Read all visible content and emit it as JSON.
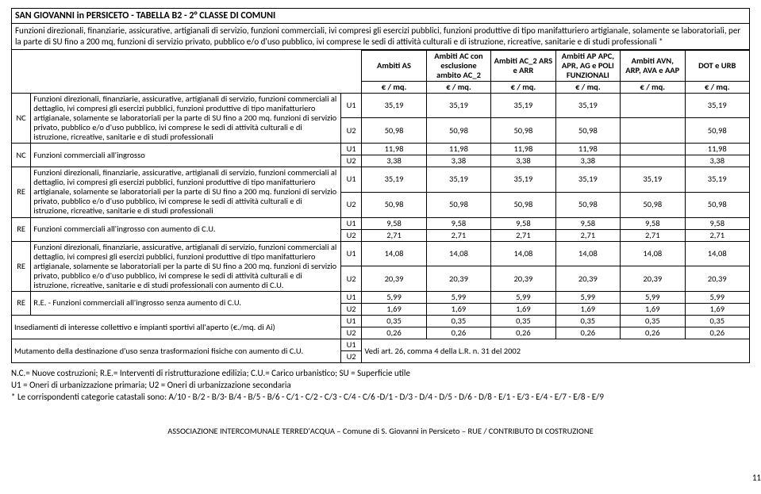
{
  "title": "SAN GIOVANNI in PERSICETO - TABELLA B2 - 2° CLASSE DI COMUNI",
  "intro": "Funzioni direzionali, finanziarie, assicurative, artigianali di servizio, funzioni commerciali, ivi compresi gli esercizi pubblici, funzioni produttive di tipo manifatturiero artigianale, solamente se laboratoriali, per la parte di SU fino a 200 mq, funzioni di servizio privato, pubblico e/o d'uso pubblico, ivi comprese le sedi di attività culturali e di istruzione, ricreative, sanitarie e di studi professionali *",
  "headers": {
    "ambitiAS": "Ambiti AS",
    "ambitiAC": "Ambiti AC con esclusione ambito AC_2",
    "ambitiAC2": "Ambiti AC_2 ARS e ARR",
    "ambitiAP": "Ambiti AP APC, APR, AG e POLI FUNZIONALI",
    "ambitiAVN": "Ambiti AVN, ARP, AVA e AAP",
    "dot": "DOT e URB",
    "unit": "€ / mq."
  },
  "rows": [
    {
      "code": "NC",
      "desc": "Funzioni direzionali, finanziarie, assicurative, artigianali di servizio, funzioni commerciali al dettaglio, ivi compresi gli esercizi pubblici, funzioni produttive di tipo manifatturiero artigianale, solamente se laboratoriali per la parte di SU fino a 200 mq. funzioni di servizio privato, pubblico e/o d'uso pubblico, ivi comprese le sedi di attività culturali e di istruzione, ricreative, sanitarie e di studi professionali",
      "U1": [
        "35,19",
        "35,19",
        "35,19",
        "35,19",
        "",
        "35,19"
      ],
      "U2": [
        "50,98",
        "50,98",
        "50,98",
        "50,98",
        "",
        "50,98"
      ]
    },
    {
      "code": "NC",
      "desc": "Funzioni commerciali all'ingrosso",
      "U1": [
        "11,98",
        "11,98",
        "11,98",
        "11,98",
        "",
        "11,98"
      ],
      "U2": [
        "3,38",
        "3,38",
        "3,38",
        "3,38",
        "",
        "3,38"
      ]
    },
    {
      "code": "RE",
      "desc": "Funzioni direzionali, finanziarie, assicurative, artigianali di servizio, funzioni commerciali al dettaglio, ivi compresi gli esercizi pubblici, funzioni produttive di tipo manifatturiero artigianale, solamente se laboratoriali per la parte di SU fino a 200 mq. funzioni di servizio privato, pubblico e/o d'uso pubblico, ivi comprese le sedi di attività culturali e di istruzione, ricreative, sanitarie e di studi professionali",
      "U1": [
        "35,19",
        "35,19",
        "35,19",
        "35,19",
        "35,19",
        "35,19"
      ],
      "U2": [
        "50,98",
        "50,98",
        "50,98",
        "50,98",
        "50,98",
        "50,98"
      ]
    },
    {
      "code": "RE",
      "desc": "Funzioni commerciali all'ingrosso con aumento di C.U.",
      "U1": [
        "9,58",
        "9,58",
        "9,58",
        "9,58",
        "9,58",
        "9,58"
      ],
      "U2": [
        "2,71",
        "2,71",
        "2,71",
        "2,71",
        "2,71",
        "2,71"
      ]
    },
    {
      "code": "RE",
      "desc": "Funzioni direzionali, finanziarie, assicurative, artigianali di servizio, funzioni commerciali al dettaglio, ivi compresi gli esercizi pubblici, funzioni produttive di tipo manifatturiero artigianale, solamente se laboratoriali per la parte di SU fino a 200 mq. funzioni di servizio privato, pubblico e/o d'uso pubblico, ivi comprese le sedi di attività culturali e di istruzione, ricreative, sanitarie e di studi professionali con aumento di C.U.",
      "U1": [
        "14,08",
        "14,08",
        "14,08",
        "14,08",
        "14,08",
        "14,08"
      ],
      "U2": [
        "20,39",
        "20,39",
        "20,39",
        "20,39",
        "20,39",
        "20,39"
      ]
    },
    {
      "code": "RE",
      "desc": "R.E. - Funzioni commerciali all'ingrosso senza aumento di C.U.",
      "U1": [
        "5,99",
        "5,99",
        "5,99",
        "5,99",
        "5,99",
        "5,99"
      ],
      "U2": [
        "1,69",
        "1,69",
        "1,69",
        "1,69",
        "1,69",
        "1,69"
      ]
    }
  ],
  "insediamenti": {
    "desc": "Insediamenti di interesse collettivo e impianti sportivi all'aperto (€./mq. di Ai)",
    "U1": [
      "0,35",
      "0,35",
      "0,35",
      "0,35",
      "0,35",
      "0,35"
    ],
    "U2": [
      "0,26",
      "0,26",
      "0,26",
      "0,26",
      "0,26",
      "0,26"
    ]
  },
  "mutamento": {
    "desc": "Mutamento della destinazione d'uso senza trasformazioni fisiche con aumento di C.U.",
    "note": "Vedi art. 26, comma 4 della L.R. n. 31 del 2002"
  },
  "notes": {
    "n1": "N.C.= Nuove costruzioni; R.E.= Interventi di ristrutturazione edilizia; C.U.= Carico urbanistico; SU = Superficie utile",
    "n2": "U1 = Oneri di urbanizzazione primaria; U2 = Oneri di urbanizzazione secondaria",
    "n3": "* Le corrispondenti categorie catastali sono: A/10 - B/2 - B/3- B/4 - B/5 - B/6 - C/1 - C/2 - C/3 - C/4 - C/6 -D/1 - D/3 - D/4 - D/5 - D/6 - D/8 - E/1 - E/3 - E/4 - E/7 - E/8 - E/9"
  },
  "footer": "ASSOCIAZIONE INTERCOMUNALE TERRED'ACQUA – Comune di S. Giovanni in Persiceto – RUE / CONTRIBUTO DI COSTRUZIONE",
  "pageNum": "11"
}
